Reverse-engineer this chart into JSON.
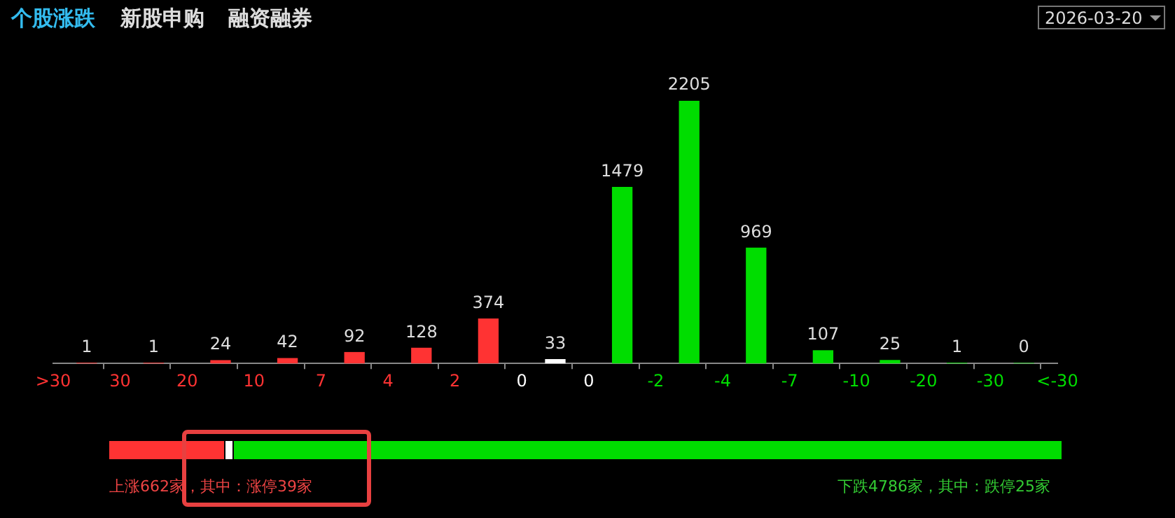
{
  "chart_data": {
    "type": "bar",
    "title": "个股涨跌",
    "annotations": [
      "新股申购",
      "融资融券",
      "2026-03-20",
      "上涨662家，其中：涨停39家",
      "下跌4786家，其中：跌停25家"
    ],
    "categories": [
      ">30",
      null,
      "30",
      null,
      "20",
      null,
      "10",
      null,
      "7",
      null,
      "4",
      null,
      "2",
      null,
      "0",
      null,
      "0",
      null,
      "-2",
      null,
      "-4",
      null,
      "-7",
      null,
      "-10",
      null,
      "-20",
      null,
      "-30",
      null,
      "<-30"
    ],
    "values": [
      null,
      1,
      null,
      1,
      null,
      24,
      null,
      42,
      null,
      92,
      null,
      128,
      null,
      374,
      null,
      33,
      null,
      1479,
      null,
      2205,
      null,
      969,
      null,
      107,
      null,
      25,
      null,
      1,
      null,
      0,
      null
    ],
    "colors": [
      "#ff3333",
      "#ff3333",
      "#ff3333",
      "#ff3333",
      "#ff3333",
      "#ff3333",
      "#ff3333",
      "#ff3333",
      "#ff3333",
      "#ff3333",
      "#ff3333",
      "#ff3333",
      "#ff3333",
      "#ff3333",
      "#ffffff",
      "#ffffff",
      "#ffffff",
      "#00dd00",
      "#00dd00",
      "#00dd00",
      "#00dd00",
      "#00dd00",
      "#00dd00",
      "#00dd00",
      "#00dd00",
      "#00dd00",
      "#00dd00",
      "#00dd00",
      "#00dd00",
      "#00dd00",
      "#00dd00"
    ],
    "data_labels": true,
    "tick_labels": "x"
  }
}
